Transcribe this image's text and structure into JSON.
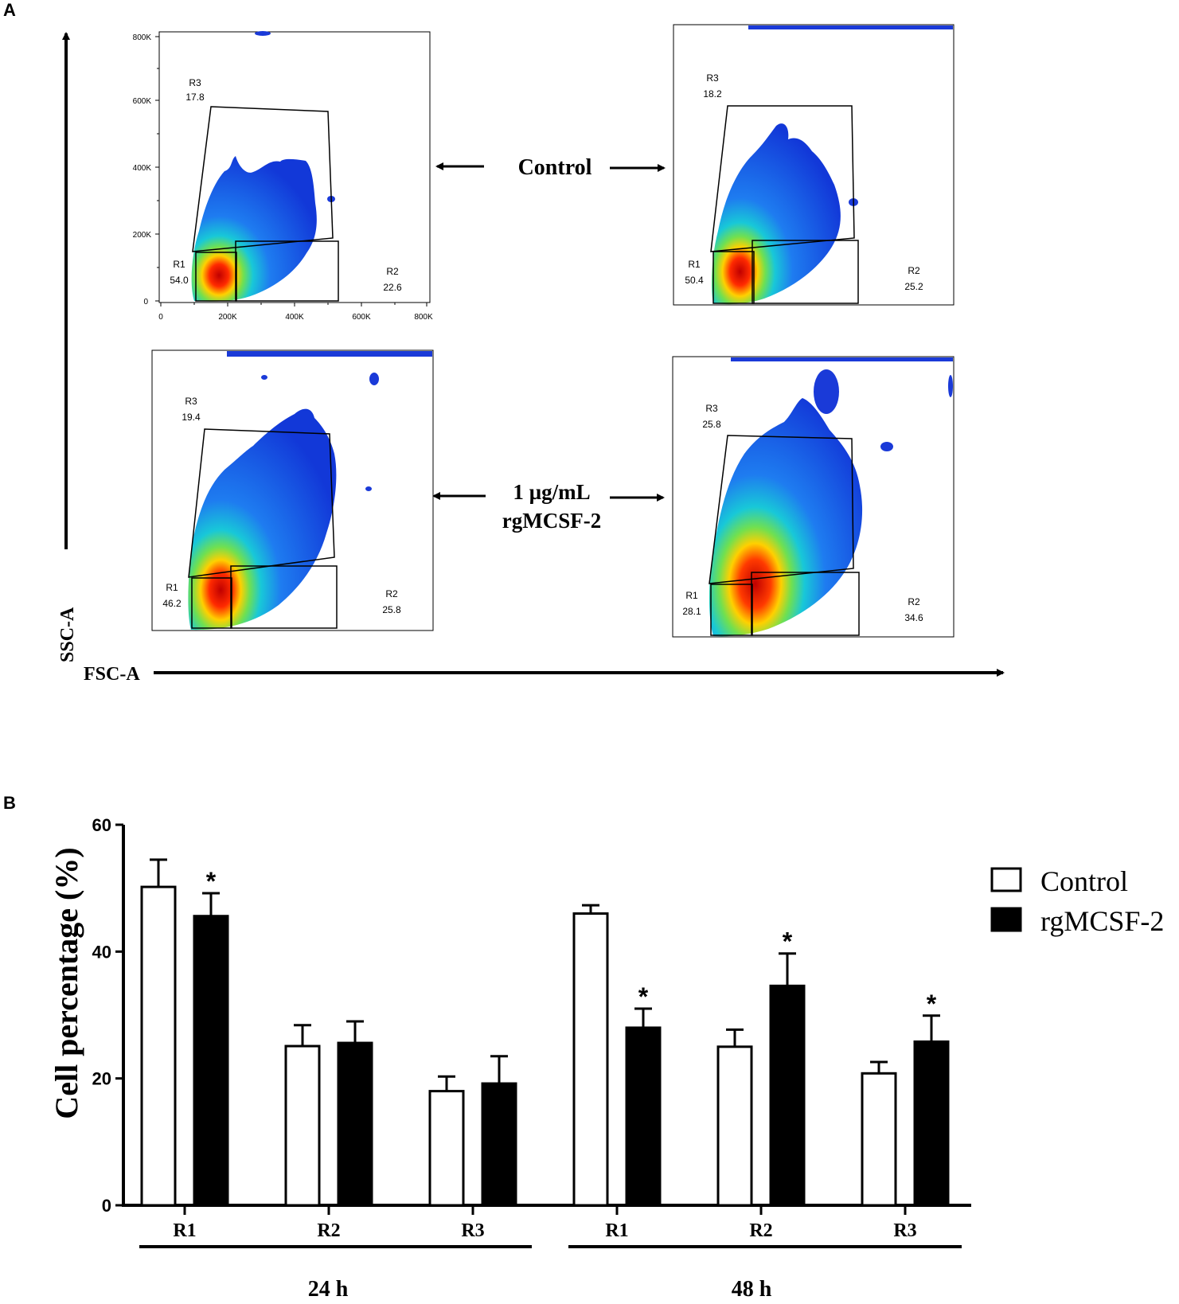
{
  "panel_a": {
    "label": "A",
    "y_axis_label": "SSC-A",
    "x_axis_label": "FSC-A",
    "row_labels": {
      "control": "Control",
      "treatment_line1": "1 µg/mL",
      "treatment_line2": "rgMCSF-2"
    },
    "axis_ticks": {
      "y": [
        "0",
        "200K",
        "400K",
        "600K",
        "800K"
      ],
      "x": [
        "0",
        "200K",
        "400K",
        "600K",
        "800K"
      ]
    },
    "plots": [
      {
        "id": "control-24h",
        "gates": [
          {
            "name": "R1",
            "value": "54.0"
          },
          {
            "name": "R2",
            "value": "22.6"
          },
          {
            "name": "R3",
            "value": "17.8"
          }
        ]
      },
      {
        "id": "control-48h",
        "gates": [
          {
            "name": "R1",
            "value": "50.4"
          },
          {
            "name": "R2",
            "value": "25.2"
          },
          {
            "name": "R3",
            "value": "18.2"
          }
        ]
      },
      {
        "id": "treated-24h",
        "gates": [
          {
            "name": "R1",
            "value": "46.2"
          },
          {
            "name": "R2",
            "value": "25.8"
          },
          {
            "name": "R3",
            "value": "19.4"
          }
        ]
      },
      {
        "id": "treated-48h",
        "gates": [
          {
            "name": "R1",
            "value": "28.1"
          },
          {
            "name": "R2",
            "value": "34.6"
          },
          {
            "name": "R3",
            "value": "25.8"
          }
        ]
      }
    ]
  },
  "panel_b": {
    "label": "B"
  },
  "chart_data": {
    "type": "bar",
    "title": "",
    "xlabel": "",
    "ylabel": "Cell percentage (%)",
    "ylim": [
      0,
      60
    ],
    "yticks": [
      0,
      20,
      40,
      60
    ],
    "categories": [
      "R1",
      "R2",
      "R3",
      "R1",
      "R2",
      "R3"
    ],
    "groups": [
      {
        "label": "24 h",
        "categories": [
          "R1",
          "R2",
          "R3"
        ]
      },
      {
        "label": "48 h",
        "categories": [
          "R1",
          "R2",
          "R3"
        ]
      }
    ],
    "series": [
      {
        "name": "Control",
        "color": "#ffffff",
        "values": [
          50.2,
          25.1,
          18.0,
          46.0,
          25.0,
          20.8
        ],
        "errors": [
          4.3,
          3.3,
          2.3,
          1.3,
          2.7,
          1.8
        ],
        "significant": [
          false,
          false,
          false,
          false,
          false,
          false
        ]
      },
      {
        "name": "rgMCSF-2",
        "color": "#000000",
        "values": [
          45.6,
          25.6,
          19.2,
          28.0,
          34.6,
          25.8
        ],
        "errors": [
          3.6,
          3.4,
          4.3,
          3.0,
          5.1,
          4.1
        ],
        "significant": [
          true,
          false,
          false,
          true,
          true,
          true
        ]
      }
    ],
    "significance_marker": "*",
    "legend": {
      "position": "top-right",
      "entries": [
        "Control",
        "rgMCSF-2"
      ]
    }
  }
}
